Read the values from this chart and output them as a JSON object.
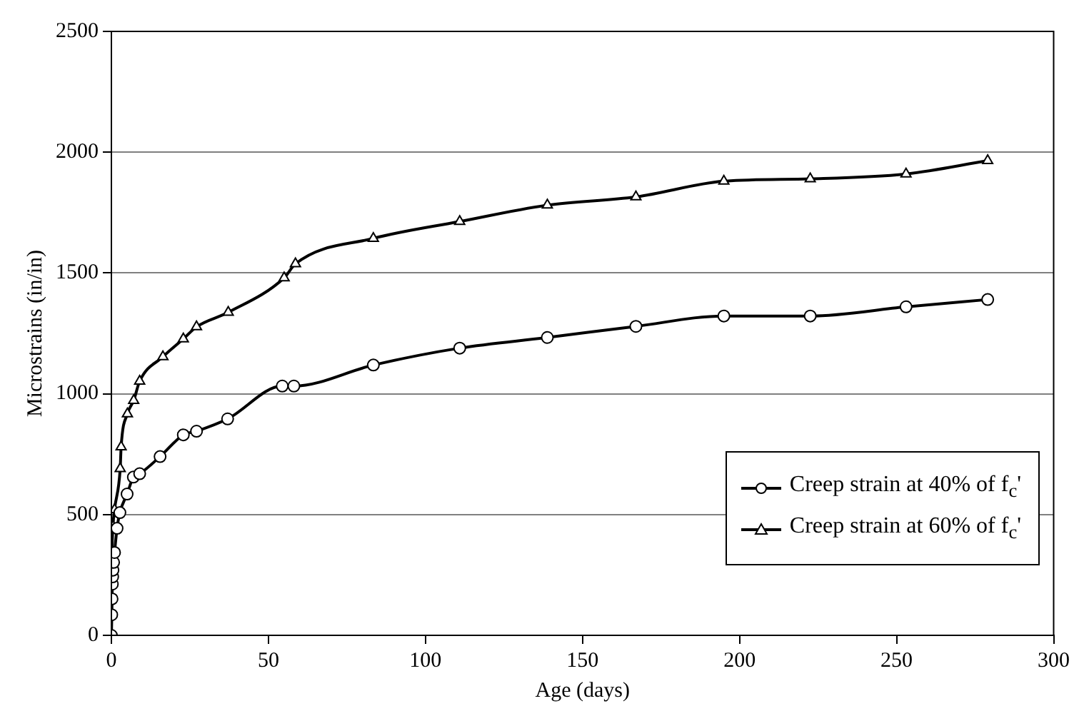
{
  "chart_data": {
    "type": "line",
    "xlabel": "Age (days)",
    "ylabel": "Microstrains (in/in)",
    "xlim": [
      0,
      300
    ],
    "xticks": [
      0,
      50,
      100,
      150,
      200,
      250,
      300
    ],
    "ylim": [
      0,
      2500
    ],
    "yticks": [
      0,
      500,
      1000,
      1500,
      2000,
      2500
    ],
    "grid": "y",
    "legend": "bottom right",
    "line_style": "solid",
    "series": [
      {
        "name": "Creep strain at 40% of f$_{c}$'",
        "color": "#000000",
        "marker": "circle",
        "x": [
          0,
          0.1,
          0.2,
          0.3,
          0.4,
          0.5,
          0.7,
          1,
          1.8,
          2.7,
          5,
          7,
          9,
          15.5,
          22.9,
          27.1,
          37,
          54.4,
          58.1,
          83.4,
          110.9,
          138.8,
          167,
          195,
          222.5,
          253,
          279
        ],
        "values": [
          0,
          85,
          151,
          212,
          242,
          270,
          302,
          343,
          443,
          508,
          585,
          655,
          669,
          740,
          830,
          845,
          896,
          1032,
          1032,
          1119,
          1189,
          1233,
          1279,
          1322,
          1322,
          1360,
          1390
        ]
      },
      {
        "name": "Creep strain at 60% of f$_{c}$'",
        "color": "#000000",
        "marker": "triangle",
        "x": [
          0,
          0.2,
          0.5,
          1,
          2.8,
          3.1,
          5.1,
          7.1,
          9,
          16.4,
          22.9,
          27.1,
          37.2,
          55,
          58.6,
          83.4,
          110.9,
          138.8,
          167,
          195,
          222.5,
          253,
          279
        ],
        "values": [
          0,
          330,
          450,
          520,
          690,
          780,
          917,
          972,
          1052,
          1153,
          1227,
          1277,
          1337,
          1480,
          1538,
          1643,
          1713,
          1781,
          1815,
          1880,
          1890,
          1910,
          1965
        ]
      }
    ]
  }
}
